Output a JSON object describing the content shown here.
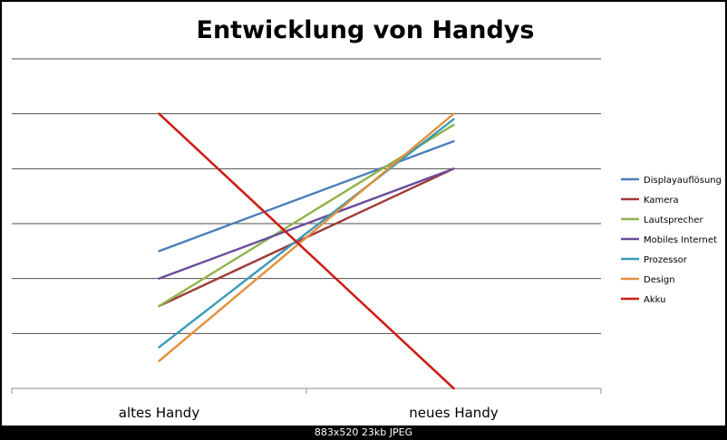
{
  "chart_data": {
    "type": "line",
    "title": "Entwicklung von Handys",
    "categories": [
      "altes Handy",
      "neues Handy"
    ],
    "ylim": [
      0,
      6
    ],
    "grid": true,
    "legend_position": "right",
    "series": [
      {
        "name": "Displayauflösung",
        "values": [
          2.5,
          4.5
        ],
        "color": "#4A7EBB"
      },
      {
        "name": "Kamera",
        "values": [
          1.5,
          4
        ],
        "color": "#9E3B37"
      },
      {
        "name": "Lautsprecher",
        "values": [
          1.5,
          4.8
        ],
        "color": "#8EB44B"
      },
      {
        "name": "Mobiles Internet",
        "values": [
          2,
          4
        ],
        "color": "#6A4C9C"
      },
      {
        "name": "Prozessor",
        "values": [
          0.75,
          4.9
        ],
        "color": "#3A9AB7"
      },
      {
        "name": "Design",
        "values": [
          0.5,
          5
        ],
        "color": "#E38F3B"
      },
      {
        "name": "Akku",
        "values": [
          5,
          0
        ],
        "color": "#CC1F17"
      }
    ]
  },
  "viewer": {
    "footer": "883x520  23kb  JPEG"
  }
}
